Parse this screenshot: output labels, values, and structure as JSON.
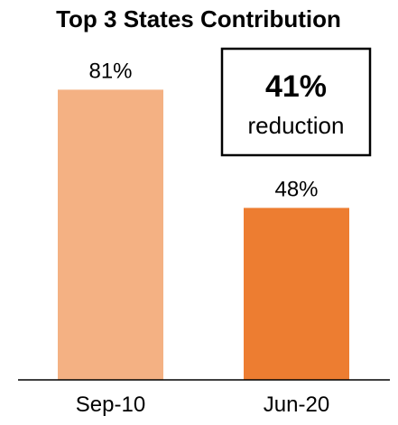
{
  "chart_data": {
    "type": "bar",
    "title": "Top 3 States Contribution",
    "categories": [
      "Sep-10",
      "Jun-20"
    ],
    "values": [
      81,
      48
    ],
    "value_labels": [
      "81%",
      "48%"
    ],
    "ylim": [
      0,
      100
    ],
    "grid": false,
    "colors": [
      "#F4B183",
      "#ED7D31"
    ],
    "annotation": {
      "value": "41%",
      "text": "reduction"
    }
  }
}
